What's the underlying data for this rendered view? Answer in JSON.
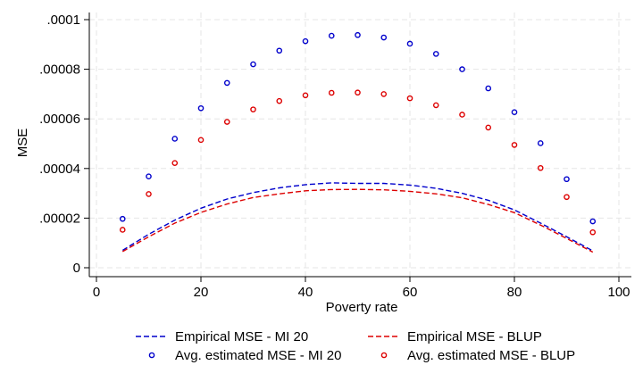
{
  "chart_data": {
    "type": "line",
    "title": "",
    "xlabel": "Poverty rate",
    "ylabel": "MSE",
    "xlim": [
      0,
      100
    ],
    "ylim": [
      0,
      0.0001
    ],
    "xticks": [
      0,
      20,
      40,
      60,
      80,
      100
    ],
    "xtick_labels": [
      "0",
      "20",
      "40",
      "60",
      "80",
      "100"
    ],
    "yticks": [
      0,
      2e-05,
      4e-05,
      6e-05,
      8e-05,
      0.0001
    ],
    "ytick_labels": [
      "0",
      ".00002",
      ".00004",
      ".00006",
      ".00008",
      ".0001"
    ],
    "grid": true,
    "legend_position": "bottom",
    "x": [
      5,
      10,
      15,
      20,
      25,
      30,
      35,
      40,
      45,
      50,
      55,
      60,
      65,
      70,
      75,
      80,
      85,
      90,
      95
    ],
    "series": [
      {
        "name": "Empirical MSE - MI 20",
        "style": "dashed-line",
        "color": "#0000cc",
        "values": [
          7e-06,
          1.35e-05,
          1.92e-05,
          2.4e-05,
          2.77e-05,
          3.03e-05,
          3.22e-05,
          3.35e-05,
          3.42e-05,
          3.4e-05,
          3.4e-05,
          3.33e-05,
          3.2e-05,
          3e-05,
          2.72e-05,
          2.33e-05,
          1.8e-05,
          1.25e-05,
          6.8e-06
        ]
      },
      {
        "name": "Empirical MSE - BLUP",
        "style": "dashed-line",
        "color": "#dd0000",
        "values": [
          6.5e-06,
          1.25e-05,
          1.8e-05,
          2.23e-05,
          2.57e-05,
          2.83e-05,
          2.98e-05,
          3.1e-05,
          3.15e-05,
          3.16e-05,
          3.14e-05,
          3.08e-05,
          2.98e-05,
          2.82e-05,
          2.55e-05,
          2.22e-05,
          1.72e-05,
          1.18e-05,
          6.3e-06
        ]
      },
      {
        "name": "Avg. estimated MSE - MI 20",
        "style": "hollow-markers",
        "color": "#0000cc",
        "values": [
          1.97e-05,
          3.68e-05,
          5.2e-05,
          6.43e-05,
          7.45e-05,
          8.2e-05,
          8.75e-05,
          9.13e-05,
          9.35e-05,
          9.38e-05,
          9.28e-05,
          9.03e-05,
          8.62e-05,
          8e-05,
          7.23e-05,
          6.27e-05,
          5.02e-05,
          3.57e-05,
          1.87e-05
        ]
      },
      {
        "name": "Avg. estimated MSE - BLUP",
        "style": "hollow-markers",
        "color": "#dd0000",
        "values": [
          1.53e-05,
          2.97e-05,
          4.22e-05,
          5.15e-05,
          5.88e-05,
          6.38e-05,
          6.72e-05,
          6.95e-05,
          7.05e-05,
          7.06e-05,
          7e-05,
          6.83e-05,
          6.55e-05,
          6.17e-05,
          5.65e-05,
          4.95e-05,
          4.02e-05,
          2.85e-05,
          1.43e-05
        ]
      }
    ]
  }
}
